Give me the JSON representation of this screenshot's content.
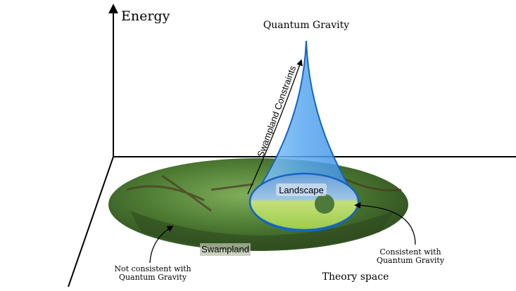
{
  "axes": {
    "vertical_label": "Energy",
    "horizontal_label": "Theory space"
  },
  "labels": {
    "top": "Quantum Gravity",
    "constraints": "Swampland Constraints",
    "landscape": "Landscape",
    "swampland": "Swampland",
    "not_consistent_line1": "Not consistent with",
    "not_consistent_line2": "Quantum Gravity",
    "consistent_line1": "Consistent with",
    "consistent_line2": "Quantum Gravity"
  },
  "colors": {
    "swamp": "#3f6b2c",
    "cone": "#5aa8f0",
    "cone_edge": "#1565c0",
    "meadow": "#b9d96a"
  }
}
